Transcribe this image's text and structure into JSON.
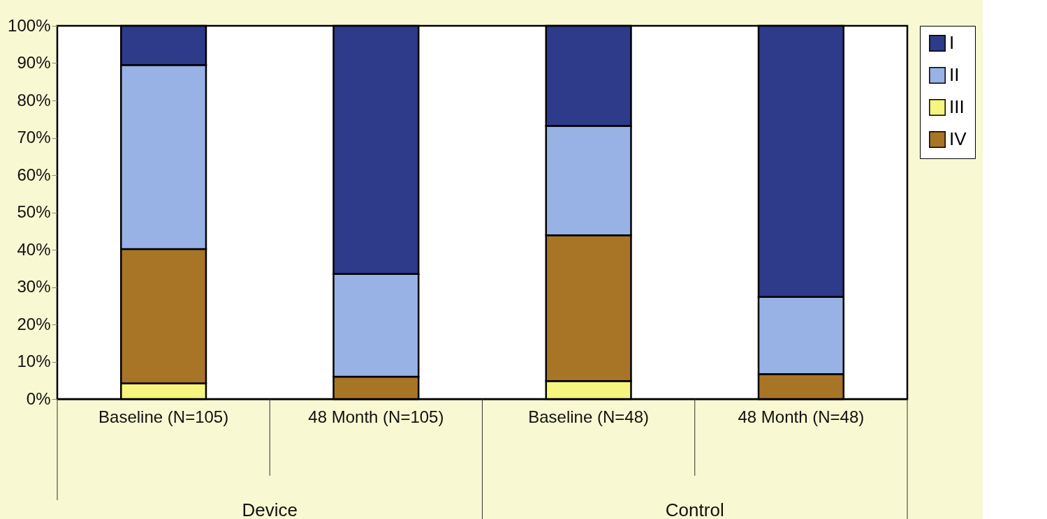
{
  "chart_data": {
    "type": "bar",
    "stacked": true,
    "categories": [
      "Baseline (N=105)",
      "48 Month (N=105)",
      "Baseline (N=48)",
      "48 Month (N=48)"
    ],
    "series": [
      {
        "name": "III",
        "color": "#f5f580",
        "values": [
          4.2,
          0,
          4.8,
          0
        ]
      },
      {
        "name": "IV",
        "color": "#a87426",
        "values": [
          36.0,
          6.0,
          39.1,
          6.7
        ]
      },
      {
        "name": "II",
        "color": "#98b2e6",
        "values": [
          49.3,
          27.5,
          29.3,
          20.7
        ]
      },
      {
        "name": "I",
        "color": "#2e3a8a",
        "values": [
          10.5,
          66.5,
          26.8,
          72.6
        ]
      }
    ],
    "ylim": [
      0,
      100
    ],
    "yticks": [
      {
        "value": 0,
        "label": "0%"
      },
      {
        "value": 10,
        "label": "10%"
      },
      {
        "value": 20,
        "label": "20%"
      },
      {
        "value": 30,
        "label": "30%"
      },
      {
        "value": 40,
        "label": "40%"
      },
      {
        "value": 50,
        "label": "50%"
      },
      {
        "value": 60,
        "label": "60%"
      },
      {
        "value": 70,
        "label": "70%"
      },
      {
        "value": 80,
        "label": "80%"
      },
      {
        "value": 90,
        "label": "90%"
      },
      {
        "value": 100,
        "label": "100%"
      }
    ],
    "annotations": [
      "Device",
      "Control"
    ],
    "legend": "right",
    "grid": false
  }
}
